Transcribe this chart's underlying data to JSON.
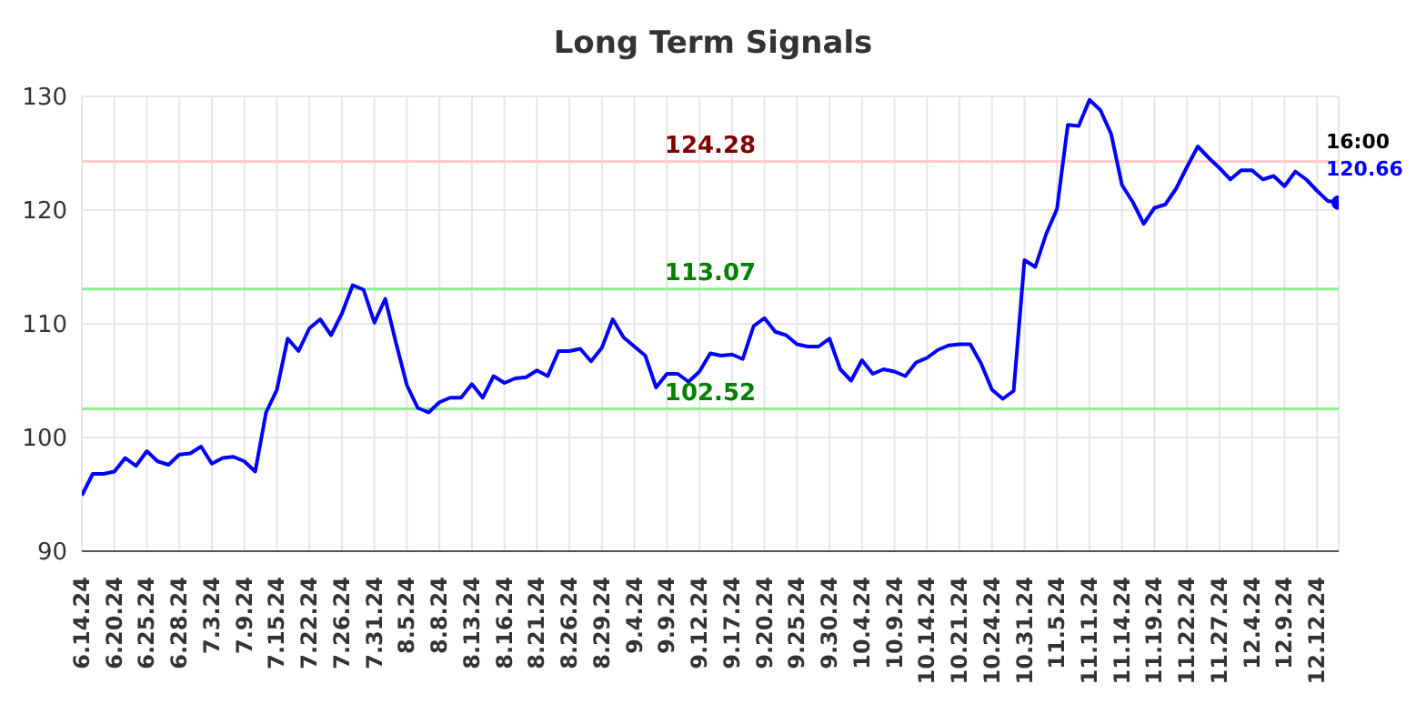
{
  "chart_data": {
    "type": "line",
    "title": "Long Term Signals",
    "categories": [
      "6.14.24",
      null,
      null,
      "6.20.24",
      null,
      null,
      "6.25.24",
      null,
      null,
      "6.28.24",
      null,
      null,
      "7.3.24",
      null,
      null,
      "7.9.24",
      null,
      null,
      "7.15.24",
      null,
      null,
      "7.22.24",
      null,
      null,
      "7.26.24",
      null,
      null,
      "7.31.24",
      null,
      null,
      "8.5.24",
      null,
      null,
      "8.8.24",
      null,
      null,
      "8.13.24",
      null,
      null,
      "8.16.24",
      null,
      null,
      "8.21.24",
      null,
      null,
      "8.26.24",
      null,
      null,
      "8.29.24",
      null,
      null,
      "9.4.24",
      null,
      null,
      "9.9.24",
      null,
      null,
      "9.12.24",
      null,
      null,
      "9.17.24",
      null,
      null,
      "9.20.24",
      null,
      null,
      "9.25.24",
      null,
      null,
      "9.30.24",
      null,
      null,
      "10.4.24",
      null,
      null,
      "10.9.24",
      null,
      null,
      "10.14.24",
      null,
      null,
      "10.21.24",
      null,
      null,
      "10.24.24",
      null,
      null,
      "10.31.24",
      null,
      null,
      "11.5.24",
      null,
      null,
      "11.11.24",
      null,
      null,
      "11.14.24",
      null,
      null,
      "11.19.24",
      null,
      null,
      "11.22.24",
      null,
      null,
      "11.27.24",
      null,
      null,
      "12.4.24",
      null,
      null,
      "12.9.24",
      null,
      null,
      "12.12.24",
      null,
      null
    ],
    "series": [
      {
        "color": "#0000ff",
        "values": [
          94.9,
          96.8,
          96.8,
          97.0,
          98.2,
          97.5,
          98.8,
          97.9,
          97.6,
          98.5,
          98.6,
          99.2,
          97.7,
          98.2,
          98.3,
          97.9,
          97.0,
          102.2,
          104.2,
          108.7,
          107.6,
          109.6,
          110.4,
          109.0,
          110.9,
          113.4,
          113.0,
          110.1,
          112.2,
          108.3,
          104.6,
          102.6,
          102.2,
          103.1,
          103.5,
          103.5,
          104.7,
          103.5,
          105.4,
          104.8,
          105.2,
          105.3,
          105.9,
          105.4,
          107.6,
          107.6,
          107.8,
          106.7,
          107.9,
          110.4,
          108.8,
          108.0,
          107.2,
          104.4,
          105.6,
          105.6,
          104.9,
          105.8,
          107.4,
          107.2,
          107.3,
          106.9,
          109.8,
          110.5,
          109.3,
          109.0,
          108.2,
          108.0,
          108.0,
          108.7,
          106.0,
          105.0,
          106.8,
          105.6,
          106.0,
          105.8,
          105.4,
          106.6,
          107.0,
          107.7,
          108.1,
          108.2,
          108.2,
          106.5,
          104.2,
          103.4,
          104.1,
          115.6,
          115.0,
          117.9,
          120.1,
          127.5,
          127.4,
          129.7,
          128.8,
          126.7,
          122.2,
          120.7,
          118.8,
          120.2,
          120.5,
          121.9,
          123.8,
          125.6,
          124.6,
          123.7,
          122.7,
          123.5,
          123.5,
          122.7,
          123.0,
          122.1,
          123.4,
          122.7,
          121.7,
          120.8,
          120.66
        ],
        "value_labels": [
          null,
          null,
          null,
          null,
          null,
          null,
          null,
          null,
          null,
          null,
          null,
          null,
          null,
          null,
          null,
          null,
          null,
          null,
          null,
          null,
          null,
          null,
          null,
          null,
          null,
          null,
          null,
          null,
          null,
          null,
          null,
          null,
          null,
          null,
          null,
          null,
          null,
          null,
          null,
          null,
          null,
          null,
          null,
          null,
          null,
          null,
          null,
          null,
          null,
          null,
          null,
          null,
          null,
          null,
          null,
          null,
          null,
          null,
          null,
          null,
          null,
          null,
          null,
          null,
          null,
          null,
          null,
          null,
          null,
          null,
          null,
          null,
          null,
          null,
          null,
          null,
          null,
          null,
          null,
          null,
          null,
          null,
          null,
          null,
          null,
          null,
          null,
          null,
          null,
          null,
          null,
          null,
          null,
          null,
          null,
          null,
          null,
          null,
          null,
          null,
          null,
          null,
          null,
          null,
          null,
          null,
          null,
          null,
          null,
          null,
          null,
          null,
          null,
          null,
          null,
          null,
          "120.66"
        ]
      }
    ],
    "ylim": [
      90,
      130
    ],
    "yticks": [
      90,
      100,
      110,
      120,
      130
    ],
    "grid": true,
    "marker": "none",
    "line_style": "solid",
    "ref_lines": [
      {
        "axis": "y",
        "value": 124.28,
        "label": "124.28",
        "color": "#ffcccc"
      },
      {
        "axis": "y",
        "value": 113.07,
        "label": "113.07",
        "color": "#90ee90"
      },
      {
        "axis": "y",
        "value": 102.52,
        "label": "102.52",
        "color": "#90ee90"
      }
    ],
    "annotations": [
      "16:00"
    ]
  }
}
